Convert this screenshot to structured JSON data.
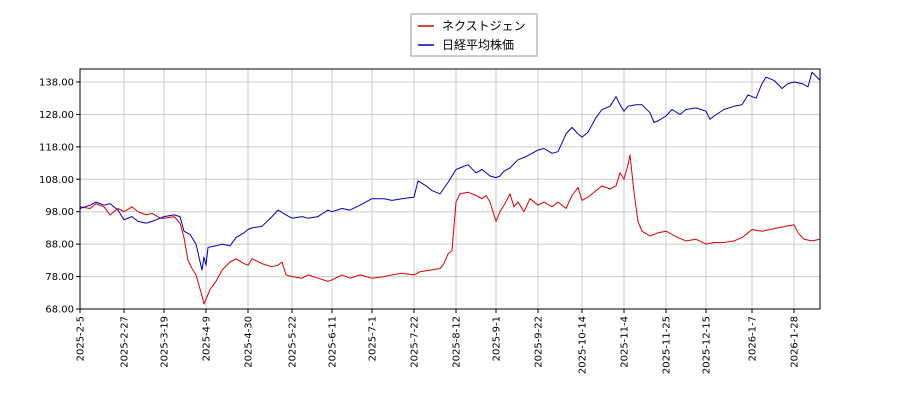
{
  "chart_data": {
    "type": "line",
    "legend": {
      "placement": "top-center"
    },
    "grid": true,
    "ylim": [
      68.0,
      142.0
    ],
    "y_ticks": [
      68.0,
      78.0,
      88.0,
      98.0,
      108.0,
      118.0,
      128.0,
      138.0
    ],
    "y_tick_labels": [
      "68.00",
      "78.00",
      "88.00",
      "98.00",
      "108.00",
      "118.00",
      "128.00",
      "138.00"
    ],
    "x_ticks": [
      "2025-2-5",
      "2025-2-27",
      "2025-3-19",
      "2025-4-9",
      "2025-4-30",
      "2025-5-22",
      "2025-6-11",
      "2025-7-1",
      "2025-7-22",
      "2025-8-12",
      "2025-9-1",
      "2025-9-22",
      "2025-10-14",
      "2025-11-4",
      "2025-11-25",
      "2025-12-15",
      "2026-1-7",
      "2026-1-28"
    ],
    "x_range": [
      "2025-2-5",
      "2026-2-10"
    ],
    "series": [
      {
        "name": "ネクストジェン",
        "color": "#dd0000",
        "points": [
          [
            "2025-2-5",
            99.5
          ],
          [
            "2025-2-10",
            99.0
          ],
          [
            "2025-2-13",
            100.5
          ],
          [
            "2025-2-17",
            99.5
          ],
          [
            "2025-2-20",
            97.0
          ],
          [
            "2025-2-24",
            99.0
          ],
          [
            "2025-2-27",
            98.0
          ],
          [
            "2025-3-3",
            99.5
          ],
          [
            "2025-3-6",
            98.0
          ],
          [
            "2025-3-10",
            97.0
          ],
          [
            "2025-3-13",
            97.5
          ],
          [
            "2025-3-17",
            96.0
          ],
          [
            "2025-3-19",
            96.0
          ],
          [
            "2025-3-24",
            96.5
          ],
          [
            "2025-3-27",
            94.5
          ],
          [
            "2025-3-29",
            90.0
          ],
          [
            "2025-3-31",
            83.0
          ],
          [
            "2025-4-2",
            80.5
          ],
          [
            "2025-4-4",
            78.5
          ],
          [
            "2025-4-7",
            72.0
          ],
          [
            "2025-4-8",
            69.5
          ],
          [
            "2025-4-9",
            71.0
          ],
          [
            "2025-4-11",
            74.0
          ],
          [
            "2025-4-14",
            76.5
          ],
          [
            "2025-4-17",
            80.0
          ],
          [
            "2025-4-21",
            82.5
          ],
          [
            "2025-4-24",
            83.5
          ],
          [
            "2025-4-28",
            82.0
          ],
          [
            "2025-4-30",
            81.5
          ],
          [
            "2025-5-2",
            83.5
          ],
          [
            "2025-5-7",
            82.0
          ],
          [
            "2025-5-12",
            81.0
          ],
          [
            "2025-5-15",
            81.5
          ],
          [
            "2025-5-17",
            82.5
          ],
          [
            "2025-5-19",
            78.5
          ],
          [
            "2025-5-22",
            78.0
          ],
          [
            "2025-5-27",
            77.5
          ],
          [
            "2025-5-30",
            78.5
          ],
          [
            "2025-6-4",
            77.5
          ],
          [
            "2025-6-9",
            76.5
          ],
          [
            "2025-6-11",
            77.0
          ],
          [
            "2025-6-16",
            78.5
          ],
          [
            "2025-6-20",
            77.5
          ],
          [
            "2025-6-25",
            78.5
          ],
          [
            "2025-7-1",
            77.5
          ],
          [
            "2025-7-7",
            78.0
          ],
          [
            "2025-7-11",
            78.5
          ],
          [
            "2025-7-16",
            79.0
          ],
          [
            "2025-7-22",
            78.5
          ],
          [
            "2025-7-25",
            79.5
          ],
          [
            "2025-7-30",
            80.0
          ],
          [
            "2025-8-4",
            80.5
          ],
          [
            "2025-8-6",
            82.0
          ],
          [
            "2025-8-8",
            85.0
          ],
          [
            "2025-8-10",
            86.0
          ],
          [
            "2025-8-12",
            101.0
          ],
          [
            "2025-8-14",
            103.5
          ],
          [
            "2025-8-18",
            104.0
          ],
          [
            "2025-8-22",
            103.0
          ],
          [
            "2025-8-25",
            102.0
          ],
          [
            "2025-8-27",
            103.0
          ],
          [
            "2025-8-29",
            101.0
          ],
          [
            "2025-9-1",
            95.0
          ],
          [
            "2025-9-3",
            98.0
          ],
          [
            "2025-9-5",
            100.0
          ],
          [
            "2025-9-8",
            103.5
          ],
          [
            "2025-9-10",
            99.5
          ],
          [
            "2025-9-12",
            101.0
          ],
          [
            "2025-9-15",
            98.0
          ],
          [
            "2025-9-18",
            102.0
          ],
          [
            "2025-9-22",
            100.0
          ],
          [
            "2025-9-25",
            101.0
          ],
          [
            "2025-9-29",
            99.5
          ],
          [
            "2025-10-2",
            101.0
          ],
          [
            "2025-10-6",
            99.0
          ],
          [
            "2025-10-9",
            103.0
          ],
          [
            "2025-10-12",
            105.5
          ],
          [
            "2025-10-14",
            101.5
          ],
          [
            "2025-10-17",
            102.5
          ],
          [
            "2025-10-21",
            104.5
          ],
          [
            "2025-10-24",
            106.0
          ],
          [
            "2025-10-28",
            105.0
          ],
          [
            "2025-10-31",
            106.0
          ],
          [
            "2025-11-2",
            110.0
          ],
          [
            "2025-11-4",
            108.0
          ],
          [
            "2025-11-6",
            112.5
          ],
          [
            "2025-11-7",
            115.5
          ],
          [
            "2025-11-9",
            104.0
          ],
          [
            "2025-11-11",
            95.0
          ],
          [
            "2025-11-13",
            92.0
          ],
          [
            "2025-11-17",
            90.5
          ],
          [
            "2025-11-21",
            91.5
          ],
          [
            "2025-11-25",
            92.0
          ],
          [
            "2025-11-28",
            91.0
          ],
          [
            "2025-12-1",
            90.0
          ],
          [
            "2025-12-5",
            89.0
          ],
          [
            "2025-12-10",
            89.5
          ],
          [
            "2025-12-15",
            88.0
          ],
          [
            "2025-12-19",
            88.5
          ],
          [
            "2025-12-24",
            88.5
          ],
          [
            "2025-12-29",
            89.0
          ],
          [
            "2026-1-2",
            90.0
          ],
          [
            "2026-1-5",
            91.5
          ],
          [
            "2026-1-7",
            92.5
          ],
          [
            "2026-1-12",
            92.0
          ],
          [
            "2026-1-16",
            92.5
          ],
          [
            "2026-1-20",
            93.0
          ],
          [
            "2026-1-24",
            93.5
          ],
          [
            "2026-1-28",
            94.0
          ],
          [
            "2026-1-30",
            91.5
          ],
          [
            "2026-2-2",
            89.5
          ],
          [
            "2026-2-6",
            89.0
          ],
          [
            "2026-2-10",
            89.5
          ]
        ]
      },
      {
        "name": "日経平均株価",
        "color": "#0000bb",
        "points": [
          [
            "2025-2-5",
            99.0
          ],
          [
            "2025-2-10",
            100.0
          ],
          [
            "2025-2-13",
            101.0
          ],
          [
            "2025-2-17",
            100.0
          ],
          [
            "2025-2-20",
            100.5
          ],
          [
            "2025-2-24",
            98.5
          ],
          [
            "2025-2-27",
            95.5
          ],
          [
            "2025-3-3",
            96.5
          ],
          [
            "2025-3-6",
            95.0
          ],
          [
            "2025-3-10",
            94.5
          ],
          [
            "2025-3-13",
            95.0
          ],
          [
            "2025-3-17",
            96.0
          ],
          [
            "2025-3-19",
            96.5
          ],
          [
            "2025-3-24",
            97.0
          ],
          [
            "2025-3-27",
            96.5
          ],
          [
            "2025-3-29",
            92.0
          ],
          [
            "2025-4-1",
            91.0
          ],
          [
            "2025-4-4",
            88.0
          ],
          [
            "2025-4-7",
            80.0
          ],
          [
            "2025-4-8",
            84.0
          ],
          [
            "2025-4-9",
            81.5
          ],
          [
            "2025-4-10",
            87.0
          ],
          [
            "2025-4-14",
            87.5
          ],
          [
            "2025-4-17",
            88.0
          ],
          [
            "2025-4-21",
            87.5
          ],
          [
            "2025-4-24",
            90.0
          ],
          [
            "2025-4-28",
            91.5
          ],
          [
            "2025-4-30",
            92.5
          ],
          [
            "2025-5-2",
            93.0
          ],
          [
            "2025-5-7",
            93.5
          ],
          [
            "2025-5-12",
            96.5
          ],
          [
            "2025-5-15",
            98.5
          ],
          [
            "2025-5-19",
            97.0
          ],
          [
            "2025-5-22",
            96.0
          ],
          [
            "2025-5-27",
            96.5
          ],
          [
            "2025-5-30",
            96.0
          ],
          [
            "2025-6-4",
            96.5
          ],
          [
            "2025-6-9",
            98.5
          ],
          [
            "2025-6-11",
            98.0
          ],
          [
            "2025-6-16",
            99.0
          ],
          [
            "2025-6-20",
            98.5
          ],
          [
            "2025-6-25",
            100.0
          ],
          [
            "2025-7-1",
            102.0
          ],
          [
            "2025-7-7",
            102.0
          ],
          [
            "2025-7-11",
            101.5
          ],
          [
            "2025-7-16",
            102.0
          ],
          [
            "2025-7-22",
            102.5
          ],
          [
            "2025-7-24",
            107.5
          ],
          [
            "2025-7-28",
            106.0
          ],
          [
            "2025-7-31",
            104.5
          ],
          [
            "2025-8-4",
            103.5
          ],
          [
            "2025-8-8",
            107.0
          ],
          [
            "2025-8-12",
            111.0
          ],
          [
            "2025-8-14",
            111.5
          ],
          [
            "2025-8-18",
            112.5
          ],
          [
            "2025-8-22",
            110.0
          ],
          [
            "2025-8-25",
            111.0
          ],
          [
            "2025-8-29",
            109.0
          ],
          [
            "2025-9-1",
            108.5
          ],
          [
            "2025-9-3",
            109.0
          ],
          [
            "2025-9-5",
            110.5
          ],
          [
            "2025-9-8",
            111.5
          ],
          [
            "2025-9-12",
            114.0
          ],
          [
            "2025-9-16",
            115.0
          ],
          [
            "2025-9-19",
            116.0
          ],
          [
            "2025-9-22",
            117.0
          ],
          [
            "2025-9-25",
            117.5
          ],
          [
            "2025-9-29",
            116.0
          ],
          [
            "2025-10-2",
            116.5
          ],
          [
            "2025-10-6",
            122.0
          ],
          [
            "2025-10-9",
            124.0
          ],
          [
            "2025-10-12",
            122.0
          ],
          [
            "2025-10-14",
            121.0
          ],
          [
            "2025-10-17",
            122.5
          ],
          [
            "2025-10-21",
            127.0
          ],
          [
            "2025-10-24",
            129.5
          ],
          [
            "2025-10-28",
            130.5
          ],
          [
            "2025-10-31",
            133.5
          ],
          [
            "2025-11-2",
            131.0
          ],
          [
            "2025-11-4",
            129.0
          ],
          [
            "2025-11-6",
            130.5
          ],
          [
            "2025-11-10",
            131.0
          ],
          [
            "2025-11-13",
            131.0
          ],
          [
            "2025-11-17",
            128.5
          ],
          [
            "2025-11-19",
            125.5
          ],
          [
            "2025-11-21",
            126.0
          ],
          [
            "2025-11-25",
            127.5
          ],
          [
            "2025-11-28",
            129.5
          ],
          [
            "2025-12-2",
            128.0
          ],
          [
            "2025-12-5",
            129.5
          ],
          [
            "2025-12-10",
            130.0
          ],
          [
            "2025-12-15",
            129.0
          ],
          [
            "2025-12-17",
            126.5
          ],
          [
            "2025-12-19",
            127.5
          ],
          [
            "2025-12-24",
            129.5
          ],
          [
            "2025-12-29",
            130.5
          ],
          [
            "2026-1-2",
            131.0
          ],
          [
            "2026-1-5",
            134.0
          ],
          [
            "2026-1-7",
            133.5
          ],
          [
            "2026-1-9",
            133.0
          ],
          [
            "2026-1-12",
            137.5
          ],
          [
            "2026-1-14",
            139.5
          ],
          [
            "2026-1-18",
            138.5
          ],
          [
            "2026-1-22",
            136.0
          ],
          [
            "2026-1-25",
            137.5
          ],
          [
            "2026-1-28",
            138.0
          ],
          [
            "2026-2-1",
            137.5
          ],
          [
            "2026-2-4",
            136.5
          ],
          [
            "2026-2-6",
            141.0
          ],
          [
            "2026-2-10",
            138.5
          ]
        ]
      }
    ]
  }
}
